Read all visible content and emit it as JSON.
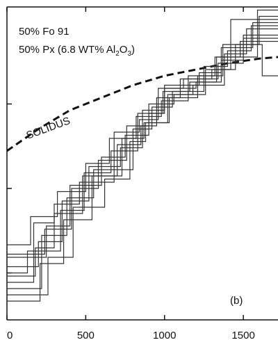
{
  "chart_data": {
    "type": "line",
    "title": "",
    "xlabel": "",
    "ylabel": "",
    "xlim": [
      0,
      1720
    ],
    "ylim": [
      0,
      1
    ],
    "x_ticks": [
      0,
      500,
      1000,
      1500
    ],
    "x_tick_labels": [
      "0",
      "500",
      "1000",
      "1500"
    ],
    "y_ticks": [
      0.15,
      0.42,
      0.69
    ],
    "grid": false,
    "annotations": {
      "line1": "50% Fo 91",
      "line2_prefix": "50% Px (6.8 WT% Al",
      "line2_sub": "2",
      "line2_mid": "O",
      "line2_sub2": "3",
      "line2_suffix": ")",
      "solidus": "SOLIDUS",
      "panel": "(b)"
    },
    "series": [
      {
        "name": "SOLIDUS",
        "style": "dashed",
        "x": [
          0,
          200,
          400,
          600,
          800,
          1000,
          1200,
          1400,
          1600,
          1720
        ],
        "y": [
          0.54,
          0.61,
          0.67,
          0.71,
          0.75,
          0.78,
          0.8,
          0.82,
          0.835,
          0.84
        ]
      },
      {
        "style": "stepped",
        "x": [
          0,
          250,
          250,
          400,
          400,
          600,
          600,
          750,
          750,
          900,
          900,
          1000,
          1000,
          1200,
          1200,
          1360,
          1360,
          1500,
          1500,
          1720
        ],
        "y": [
          0.2,
          0.2,
          0.3,
          0.3,
          0.43,
          0.43,
          0.52,
          0.52,
          0.59,
          0.59,
          0.66,
          0.66,
          0.74,
          0.74,
          0.76,
          0.76,
          0.83,
          0.83,
          0.91,
          0.91
        ]
      },
      {
        "style": "stepped",
        "x": [
          0,
          180,
          180,
          300,
          300,
          480,
          480,
          700,
          700,
          850,
          850,
          950,
          950,
          1100,
          1100,
          1300,
          1300,
          1450,
          1450,
          1600,
          1600,
          1720
        ],
        "y": [
          0.14,
          0.14,
          0.23,
          0.23,
          0.34,
          0.34,
          0.46,
          0.46,
          0.56,
          0.56,
          0.62,
          0.62,
          0.71,
          0.71,
          0.77,
          0.77,
          0.8,
          0.8,
          0.88,
          0.88,
          0.97,
          0.97
        ]
      },
      {
        "style": "stepped",
        "x": [
          0,
          220,
          220,
          380,
          380,
          550,
          550,
          800,
          800,
          920,
          920,
          1050,
          1050,
          1250,
          1250,
          1400,
          1400,
          1550,
          1550,
          1720
        ],
        "y": [
          0.1,
          0.1,
          0.27,
          0.27,
          0.39,
          0.39,
          0.48,
          0.48,
          0.61,
          0.61,
          0.68,
          0.68,
          0.73,
          0.73,
          0.81,
          0.81,
          0.86,
          0.86,
          0.94,
          0.94
        ]
      },
      {
        "style": "stepped",
        "x": [
          0,
          150,
          150,
          320,
          320,
          500,
          500,
          650,
          650,
          820,
          820,
          980,
          980,
          1150,
          1150,
          1320,
          1320,
          1480,
          1480,
          1720
        ],
        "y": [
          0.24,
          0.24,
          0.33,
          0.33,
          0.41,
          0.41,
          0.5,
          0.5,
          0.58,
          0.58,
          0.65,
          0.65,
          0.7,
          0.7,
          0.78,
          0.78,
          0.84,
          0.84,
          0.89,
          0.89
        ]
      },
      {
        "style": "stepped",
        "x": [
          0,
          260,
          260,
          420,
          420,
          620,
          620,
          780,
          780,
          880,
          880,
          1020,
          1020,
          1180,
          1180,
          1380,
          1380,
          1520,
          1520,
          1720
        ],
        "y": [
          0.08,
          0.08,
          0.2,
          0.2,
          0.36,
          0.36,
          0.45,
          0.45,
          0.57,
          0.57,
          0.63,
          0.63,
          0.72,
          0.72,
          0.75,
          0.75,
          0.85,
          0.85,
          0.93,
          0.93
        ]
      },
      {
        "style": "stepped",
        "x": [
          0,
          200,
          200,
          350,
          350,
          520,
          520,
          720,
          720,
          860,
          860,
          1000,
          1000,
          1220,
          1220,
          1360,
          1360,
          1560,
          1560,
          1720
        ],
        "y": [
          0.17,
          0.17,
          0.25,
          0.25,
          0.38,
          0.38,
          0.49,
          0.49,
          0.55,
          0.55,
          0.67,
          0.67,
          0.75,
          0.75,
          0.79,
          0.79,
          0.87,
          0.87,
          0.95,
          0.95
        ]
      },
      {
        "style": "stepped",
        "x": [
          0,
          170,
          170,
          300,
          300,
          460,
          460,
          680,
          680,
          840,
          840,
          960,
          960,
          1120,
          1120,
          1340,
          1340,
          1500,
          1500,
          1720
        ],
        "y": [
          0.12,
          0.12,
          0.31,
          0.31,
          0.37,
          0.37,
          0.44,
          0.44,
          0.6,
          0.6,
          0.64,
          0.64,
          0.74,
          0.74,
          0.77,
          0.77,
          0.82,
          0.82,
          0.9,
          0.9
        ]
      },
      {
        "style": "stepped",
        "x": [
          0,
          240,
          240,
          410,
          410,
          580,
          580,
          760,
          760,
          900,
          900,
          1060,
          1060,
          1260,
          1260,
          1420,
          1420,
          1720
        ],
        "y": [
          0.21,
          0.21,
          0.29,
          0.29,
          0.42,
          0.42,
          0.51,
          0.51,
          0.62,
          0.62,
          0.69,
          0.69,
          0.72,
          0.72,
          0.8,
          0.8,
          0.96,
          0.96
        ]
      },
      {
        "style": "stepped",
        "x": [
          0,
          130,
          130,
          340,
          340,
          490,
          490,
          660,
          660,
          830,
          830,
          990,
          990,
          1160,
          1160,
          1330,
          1330,
          1590,
          1590,
          1720
        ],
        "y": [
          0.15,
          0.15,
          0.22,
          0.22,
          0.35,
          0.35,
          0.47,
          0.47,
          0.54,
          0.54,
          0.66,
          0.66,
          0.73,
          0.73,
          0.76,
          0.76,
          0.84,
          0.84,
          0.99,
          0.99
        ]
      },
      {
        "style": "stepped",
        "x": [
          0,
          210,
          210,
          360,
          360,
          540,
          540,
          730,
          730,
          870,
          870,
          1030,
          1030,
          1210,
          1210,
          1370,
          1370,
          1620,
          1620,
          1720
        ],
        "y": [
          0.06,
          0.06,
          0.18,
          0.18,
          0.32,
          0.32,
          0.46,
          0.46,
          0.58,
          0.58,
          0.63,
          0.63,
          0.71,
          0.71,
          0.78,
          0.78,
          0.88,
          0.88,
          0.78,
          0.78
        ]
      }
    ]
  }
}
